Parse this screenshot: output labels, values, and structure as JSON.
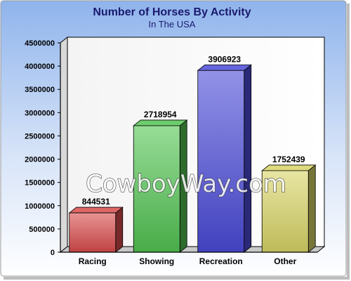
{
  "chart_data": {
    "type": "bar",
    "title": "Number of Horses By Activity",
    "subtitle": "In The USA",
    "categories": [
      "Racing",
      "Showing",
      "Recreation",
      "Other"
    ],
    "values": [
      844531,
      2718954,
      3906923,
      1752439
    ],
    "colors": [
      "#d94b4b",
      "#52c452",
      "#4a4ad8",
      "#d8d466"
    ],
    "ylim": [
      0,
      4500000
    ],
    "yticks": [
      "0",
      "500000",
      "1000000",
      "1500000",
      "2000000",
      "2500000",
      "3000000",
      "3500000",
      "4000000",
      "4500000"
    ],
    "xlabel": "",
    "ylabel": "",
    "grid": false,
    "legend": "none",
    "style": "3d-bars"
  },
  "watermark": "CowboyWay.com"
}
